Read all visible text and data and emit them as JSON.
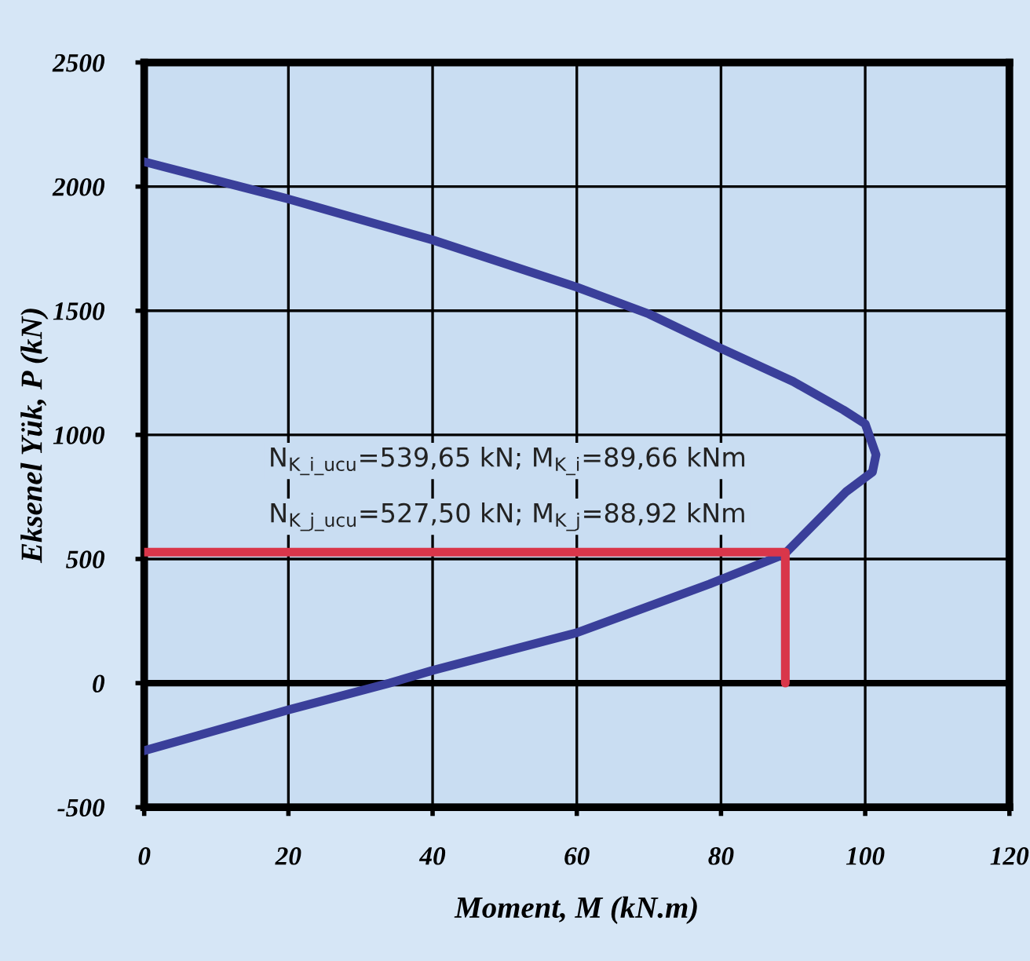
{
  "chart_data": {
    "type": "line",
    "xlabel": "Moment, M (kN.m)",
    "ylabel": "Eksenel Yük, P (kN)",
    "xlim": [
      0,
      120
    ],
    "xticks": [
      0,
      20,
      40,
      60,
      80,
      100,
      120
    ],
    "ylim": [
      -500,
      2500
    ],
    "yticks": [
      -500,
      0,
      500,
      1000,
      1500,
      2000,
      2500
    ],
    "grid": true,
    "legend": false,
    "marker": "none",
    "line_style": "solid",
    "series": [
      {
        "color": "#3a3f9a",
        "x": [
          0,
          20,
          40,
          60,
          70,
          80,
          90,
          97,
          100,
          101.5,
          101,
          97.4,
          88.8,
          78.4,
          60,
          40,
          34,
          20,
          0
        ],
        "values": [
          2100,
          1950,
          1785,
          1595,
          1487,
          1348,
          1215,
          1100,
          1044,
          920,
          850,
          772,
          519,
          399,
          203,
          51,
          0,
          -108,
          -272
        ]
      },
      {
        "color": "#d9364a",
        "x": [
          0,
          88.92,
          88.92
        ],
        "values": [
          527.5,
          527.5,
          0
        ]
      }
    ],
    "ref_lines": [
      {
        "axis": "y",
        "value": 0,
        "color": "#000000"
      }
    ],
    "annotations": [
      "N$_{K_i_ucu}$=539,65 kN; M$_{K_i}$=89,66 kNm",
      "N$_{K_j_ucu}$=527,50 kN; M$_{K_j}$=88,92 kNm"
    ]
  }
}
